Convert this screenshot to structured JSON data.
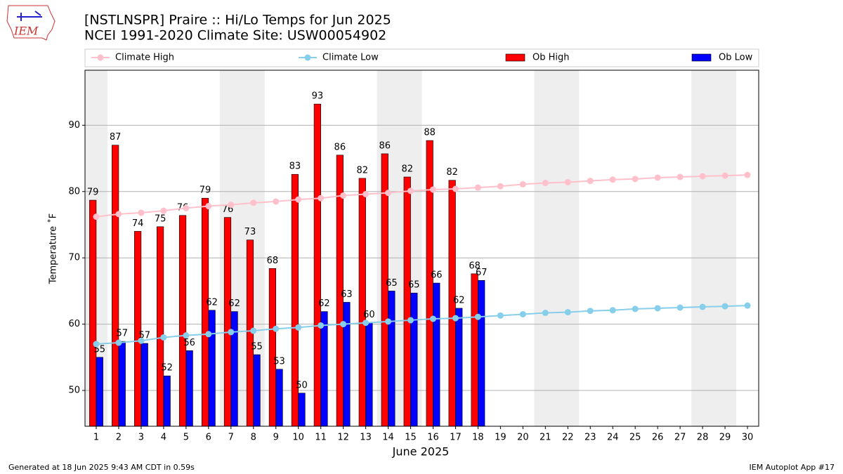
{
  "chart_data": {
    "type": "bar",
    "title": "[NSTLNSPR] Praire :: Hi/Lo Temps for Jun 2025",
    "subtitle": "NCEI 1991-2020 Climate Site: USW00054902",
    "x_label": "June 2025",
    "y_label": "Temperature ˚F",
    "footer_left": "Generated at 18 Jun 2025 9:43 AM CDT in 0.59s",
    "footer_right": "IEM Autoplot App #17",
    "logo_text": "IEM",
    "x": [
      1,
      2,
      3,
      4,
      5,
      6,
      7,
      8,
      9,
      10,
      11,
      12,
      13,
      14,
      15,
      16,
      17,
      18,
      19,
      20,
      21,
      22,
      23,
      24,
      25,
      26,
      27,
      28,
      29,
      30
    ],
    "xlim": [
      0.5,
      30.5
    ],
    "xticks": [
      1,
      2,
      3,
      4,
      5,
      6,
      7,
      8,
      9,
      10,
      11,
      12,
      13,
      14,
      15,
      16,
      17,
      18,
      19,
      20,
      21,
      22,
      23,
      24,
      25,
      26,
      27,
      28,
      29,
      30
    ],
    "ylim": [
      44.6,
      98.3
    ],
    "yticks": [
      50,
      60,
      70,
      80,
      90
    ],
    "grid": true,
    "shaded_spans": [
      [
        0.5,
        1.5
      ],
      [
        6.5,
        8.5
      ],
      [
        13.5,
        15.5
      ],
      [
        20.5,
        22.5
      ],
      [
        27.5,
        29.5
      ]
    ],
    "shade_color": "#eeeeee",
    "series": [
      {
        "name": "Climate High",
        "type": "line",
        "color": "#ffc0cb",
        "values": [
          76.2,
          76.6,
          76.8,
          77.1,
          77.5,
          77.8,
          78.0,
          78.3,
          78.5,
          78.8,
          79.0,
          79.4,
          79.6,
          79.8,
          80.1,
          80.3,
          80.4,
          80.6,
          80.8,
          81.1,
          81.3,
          81.4,
          81.6,
          81.8,
          81.9,
          82.1,
          82.2,
          82.3,
          82.4,
          82.5
        ]
      },
      {
        "name": "Climate Low",
        "type": "line",
        "color": "#87ceeb",
        "values": [
          57.0,
          57.2,
          57.5,
          58.0,
          58.3,
          58.5,
          58.8,
          59.0,
          59.3,
          59.5,
          59.8,
          60.0,
          60.2,
          60.4,
          60.6,
          60.8,
          60.9,
          61.1,
          61.3,
          61.5,
          61.7,
          61.8,
          62.0,
          62.1,
          62.3,
          62.4,
          62.5,
          62.6,
          62.7,
          62.8
        ]
      },
      {
        "name": "Ob High",
        "type": "bar",
        "color": "#ff0000",
        "values": [
          78.7,
          87.0,
          74.0,
          74.7,
          76.4,
          79.0,
          76.1,
          72.7,
          68.4,
          82.6,
          93.2,
          85.5,
          82.0,
          85.7,
          82.2,
          87.7,
          81.7,
          67.6,
          null,
          null,
          null,
          null,
          null,
          null,
          null,
          null,
          null,
          null,
          null,
          null
        ],
        "value_labels": [
          "79",
          "87",
          "74",
          "75",
          "76",
          "79",
          "76",
          "73",
          "68",
          "83",
          "93",
          "86",
          "82",
          "86",
          "82",
          "88",
          "82",
          "68",
          null,
          null,
          null,
          null,
          null,
          null,
          null,
          null,
          null,
          null,
          null,
          null
        ]
      },
      {
        "name": "Ob Low",
        "type": "bar",
        "color": "#0000ff",
        "values": [
          55.0,
          57.4,
          57.1,
          52.2,
          56.0,
          62.1,
          61.9,
          55.4,
          53.2,
          49.6,
          61.9,
          63.3,
          60.2,
          65.0,
          64.7,
          66.2,
          62.4,
          66.6,
          null,
          null,
          null,
          null,
          null,
          null,
          null,
          null,
          null,
          null,
          null,
          null
        ],
        "value_labels": [
          "55",
          "57",
          "57",
          "52",
          "56",
          "62",
          "62",
          "55",
          "53",
          "50",
          "62",
          "63",
          "60",
          "65",
          "65",
          "66",
          "62",
          "67",
          null,
          null,
          null,
          null,
          null,
          null,
          null,
          null,
          null,
          null,
          null,
          null
        ]
      }
    ]
  }
}
